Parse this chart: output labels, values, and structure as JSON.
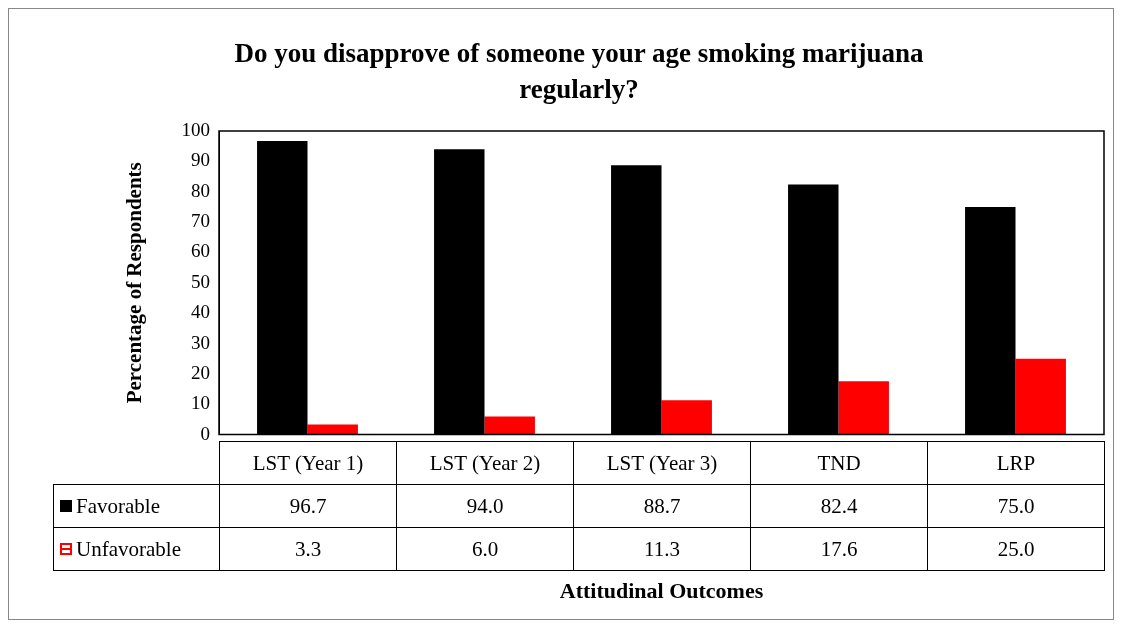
{
  "chart_data": {
    "type": "bar",
    "title": "Do you disapprove of someone your age smoking marijuana regularly?",
    "xlabel": "Attitudinal Outcomes",
    "ylabel": "Percentage of Respondents",
    "categories": [
      "LST (Year 1)",
      "LST (Year 2)",
      "LST (Year 3)",
      "TND",
      "LRP"
    ],
    "series": [
      {
        "name": "Favorable",
        "color": "#000000",
        "values": [
          96.7,
          94.0,
          88.7,
          82.4,
          75.0
        ],
        "value_labels": [
          "96.7",
          "94.0",
          "88.7",
          "82.4",
          "75.0"
        ]
      },
      {
        "name": "Unfavorable",
        "color": "#ff0000",
        "values": [
          3.3,
          6.0,
          11.3,
          17.6,
          25.0
        ],
        "value_labels": [
          "3.3",
          "6.0",
          "11.3",
          "17.6",
          "25.0"
        ]
      }
    ],
    "ylim": [
      0,
      100
    ],
    "yticks": [
      0,
      10,
      20,
      30,
      40,
      50,
      60,
      70,
      80,
      90,
      100
    ],
    "grid": false,
    "legend": "bottom"
  }
}
